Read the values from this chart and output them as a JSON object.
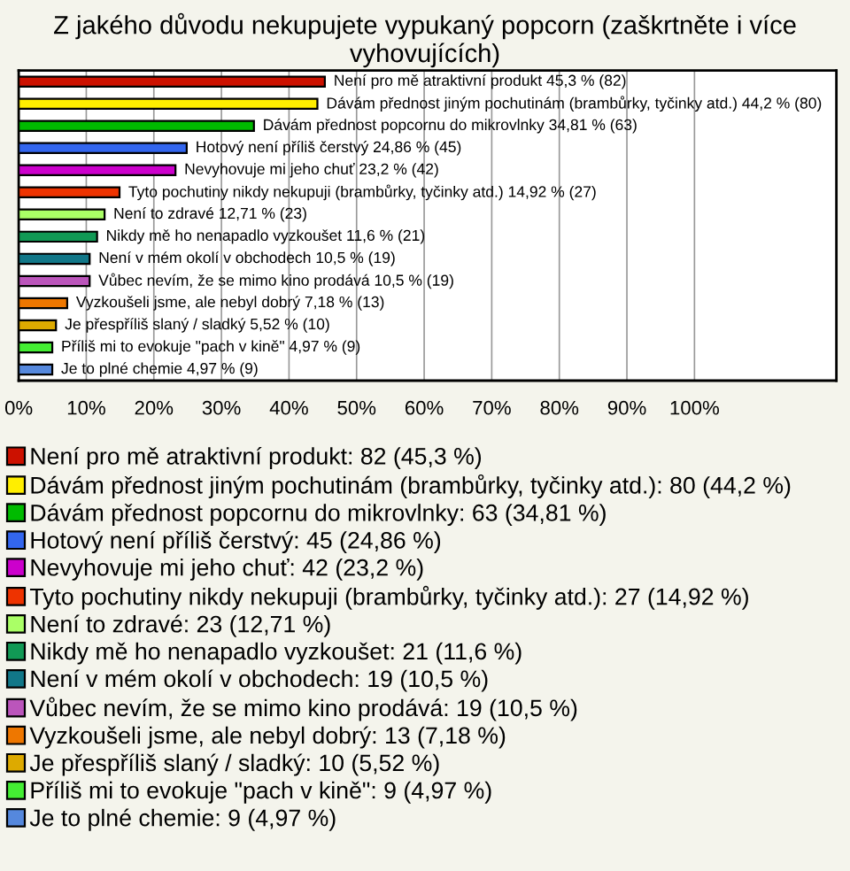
{
  "chart_data": {
    "type": "bar",
    "orientation": "horizontal",
    "title": "Z jakého důvodu nekupujete vypukaný popcorn (zaškrtněte i více vyhovujících)",
    "categories": [
      "Není pro mě atraktivní produkt",
      "Dávám přednost jiným pochutinám (brambůrky, tyčinky atd.)",
      "Dávám přednost popcornu do mikrovlnky",
      "Hotový není příliš čerstvý",
      "Nevyhovuje mi jeho chuť",
      "Tyto pochutiny nikdy nekupuji (brambůrky, tyčinky atd.)",
      "Není to zdravé",
      "Nikdy mě ho nenapadlo vyzkoušet",
      "Není v mém okolí v obchodech",
      "Vůbec nevím, že se mimo kino prodává",
      "Vyzkoušeli jsme, ale nebyl dobrý",
      "Je přespříliš slaný / sladký",
      "Příliš mi to evokuje \"pach v kině\"",
      "Je to plné chemie"
    ],
    "series": [
      {
        "name": "Není pro mě atraktivní produkt: 82 (45,3 %)",
        "color": "#cc1100",
        "values": [
          45.3,
          null,
          null,
          null,
          null,
          null,
          null,
          null,
          null,
          null,
          null,
          null,
          null,
          null
        ],
        "value_labels": [
          "45,3 % (82)",
          null,
          null,
          null,
          null,
          null,
          null,
          null,
          null,
          null,
          null,
          null,
          null,
          null
        ]
      },
      {
        "name": "Dávám přednost jiným pochutinám (brambůrky, tyčinky atd.): 80 (44,2 %)",
        "color": "#ffee00",
        "values": [
          null,
          44.2,
          null,
          null,
          null,
          null,
          null,
          null,
          null,
          null,
          null,
          null,
          null,
          null
        ],
        "value_labels": [
          null,
          "44,2 % (80)",
          null,
          null,
          null,
          null,
          null,
          null,
          null,
          null,
          null,
          null,
          null,
          null
        ]
      },
      {
        "name": "Dávám přednost popcornu do mikrovlnky: 63 (34,81 %)",
        "color": "#00bb00",
        "values": [
          null,
          null,
          34.81,
          null,
          null,
          null,
          null,
          null,
          null,
          null,
          null,
          null,
          null,
          null
        ],
        "value_labels": [
          null,
          null,
          "34,81 % (63)",
          null,
          null,
          null,
          null,
          null,
          null,
          null,
          null,
          null,
          null,
          null
        ]
      },
      {
        "name": "Hotový není příliš čerstvý: 45 (24,86 %)",
        "color": "#3366ee",
        "values": [
          null,
          null,
          null,
          24.86,
          null,
          null,
          null,
          null,
          null,
          null,
          null,
          null,
          null,
          null
        ],
        "value_labels": [
          null,
          null,
          null,
          "24,86 % (45)",
          null,
          null,
          null,
          null,
          null,
          null,
          null,
          null,
          null,
          null
        ]
      },
      {
        "name": "Nevyhovuje mi jeho chuť: 42 (23,2 %)",
        "color": "#cc00cc",
        "values": [
          null,
          null,
          null,
          null,
          23.2,
          null,
          null,
          null,
          null,
          null,
          null,
          null,
          null,
          null
        ],
        "value_labels": [
          null,
          null,
          null,
          null,
          "23,2 % (42)",
          null,
          null,
          null,
          null,
          null,
          null,
          null,
          null,
          null
        ]
      },
      {
        "name": "Tyto pochutiny nikdy nekupuji (brambůrky, tyčinky atd.): 27 (14,92 %)",
        "color": "#ee3300",
        "values": [
          null,
          null,
          null,
          null,
          null,
          14.92,
          null,
          null,
          null,
          null,
          null,
          null,
          null,
          null
        ],
        "value_labels": [
          null,
          null,
          null,
          null,
          null,
          "14,92 % (27)",
          null,
          null,
          null,
          null,
          null,
          null,
          null,
          null
        ]
      },
      {
        "name": "Není to zdravé: 23 (12,71 %)",
        "color": "#aaff66",
        "values": [
          null,
          null,
          null,
          null,
          null,
          null,
          12.71,
          null,
          null,
          null,
          null,
          null,
          null,
          null
        ],
        "value_labels": [
          null,
          null,
          null,
          null,
          null,
          null,
          "12,71 % (23)",
          null,
          null,
          null,
          null,
          null,
          null,
          null
        ]
      },
      {
        "name": "Nikdy mě ho nenapadlo vyzkoušet: 21 (11,6 %)",
        "color": "#119955",
        "values": [
          null,
          null,
          null,
          null,
          null,
          null,
          null,
          11.6,
          null,
          null,
          null,
          null,
          null,
          null
        ],
        "value_labels": [
          null,
          null,
          null,
          null,
          null,
          null,
          null,
          "11,6 % (21)",
          null,
          null,
          null,
          null,
          null,
          null
        ]
      },
      {
        "name": "Není v mém okolí v obchodech: 19 (10,5 %)",
        "color": "#117788",
        "values": [
          null,
          null,
          null,
          null,
          null,
          null,
          null,
          null,
          10.5,
          null,
          null,
          null,
          null,
          null
        ],
        "value_labels": [
          null,
          null,
          null,
          null,
          null,
          null,
          null,
          null,
          "10,5 % (19)",
          null,
          null,
          null,
          null,
          null
        ]
      },
      {
        "name": "Vůbec nevím, že se mimo kino prodává: 19 (10,5 %)",
        "color": "#bb55bb",
        "values": [
          null,
          null,
          null,
          null,
          null,
          null,
          null,
          null,
          null,
          10.5,
          null,
          null,
          null,
          null
        ],
        "value_labels": [
          null,
          null,
          null,
          null,
          null,
          null,
          null,
          null,
          null,
          "10,5 % (19)",
          null,
          null,
          null,
          null
        ]
      },
      {
        "name": "Vyzkoušeli jsme, ale nebyl dobrý: 13 (7,18 %)",
        "color": "#ee7700",
        "values": [
          null,
          null,
          null,
          null,
          null,
          null,
          null,
          null,
          null,
          null,
          7.18,
          null,
          null,
          null
        ],
        "value_labels": [
          null,
          null,
          null,
          null,
          null,
          null,
          null,
          null,
          null,
          null,
          "7,18 % (13)",
          null,
          null,
          null
        ]
      },
      {
        "name": "Je přespříliš slaný / sladký: 10 (5,52 %)",
        "color": "#ddaa00",
        "values": [
          null,
          null,
          null,
          null,
          null,
          null,
          null,
          null,
          null,
          null,
          null,
          5.52,
          null,
          null
        ],
        "value_labels": [
          null,
          null,
          null,
          null,
          null,
          null,
          null,
          null,
          null,
          null,
          null,
          "5,52 % (10)",
          null,
          null
        ]
      },
      {
        "name": "Příliš mi to evokuje \"pach v kině\": 9 (4,97 %)",
        "color": "#44ee33",
        "values": [
          null,
          null,
          null,
          null,
          null,
          null,
          null,
          null,
          null,
          null,
          null,
          null,
          4.97,
          null
        ],
        "value_labels": [
          null,
          null,
          null,
          null,
          null,
          null,
          null,
          null,
          null,
          null,
          null,
          null,
          "4,97 % (9)",
          null
        ]
      },
      {
        "name": "Je to plné chemie: 9 (4,97 %)",
        "color": "#5588dd",
        "values": [
          null,
          null,
          null,
          null,
          null,
          null,
          null,
          null,
          null,
          null,
          null,
          null,
          null,
          4.97
        ],
        "value_labels": [
          null,
          null,
          null,
          null,
          null,
          null,
          null,
          null,
          null,
          null,
          null,
          null,
          null,
          "4,97 % (9)"
        ]
      }
    ],
    "xlim": [
      0,
      121
    ],
    "xticks": [
      {
        "value": 0,
        "label": "0%"
      },
      {
        "value": 10,
        "label": "10%"
      },
      {
        "value": 20,
        "label": "20%"
      },
      {
        "value": 30,
        "label": "30%"
      },
      {
        "value": 40,
        "label": "40%"
      },
      {
        "value": 50,
        "label": "50%"
      },
      {
        "value": 60,
        "label": "60%"
      },
      {
        "value": 70,
        "label": "70%"
      },
      {
        "value": 80,
        "label": "80%"
      },
      {
        "value": 90,
        "label": "90%"
      },
      {
        "value": 100,
        "label": "100%"
      }
    ],
    "grid": "x",
    "legend": "bottom"
  }
}
